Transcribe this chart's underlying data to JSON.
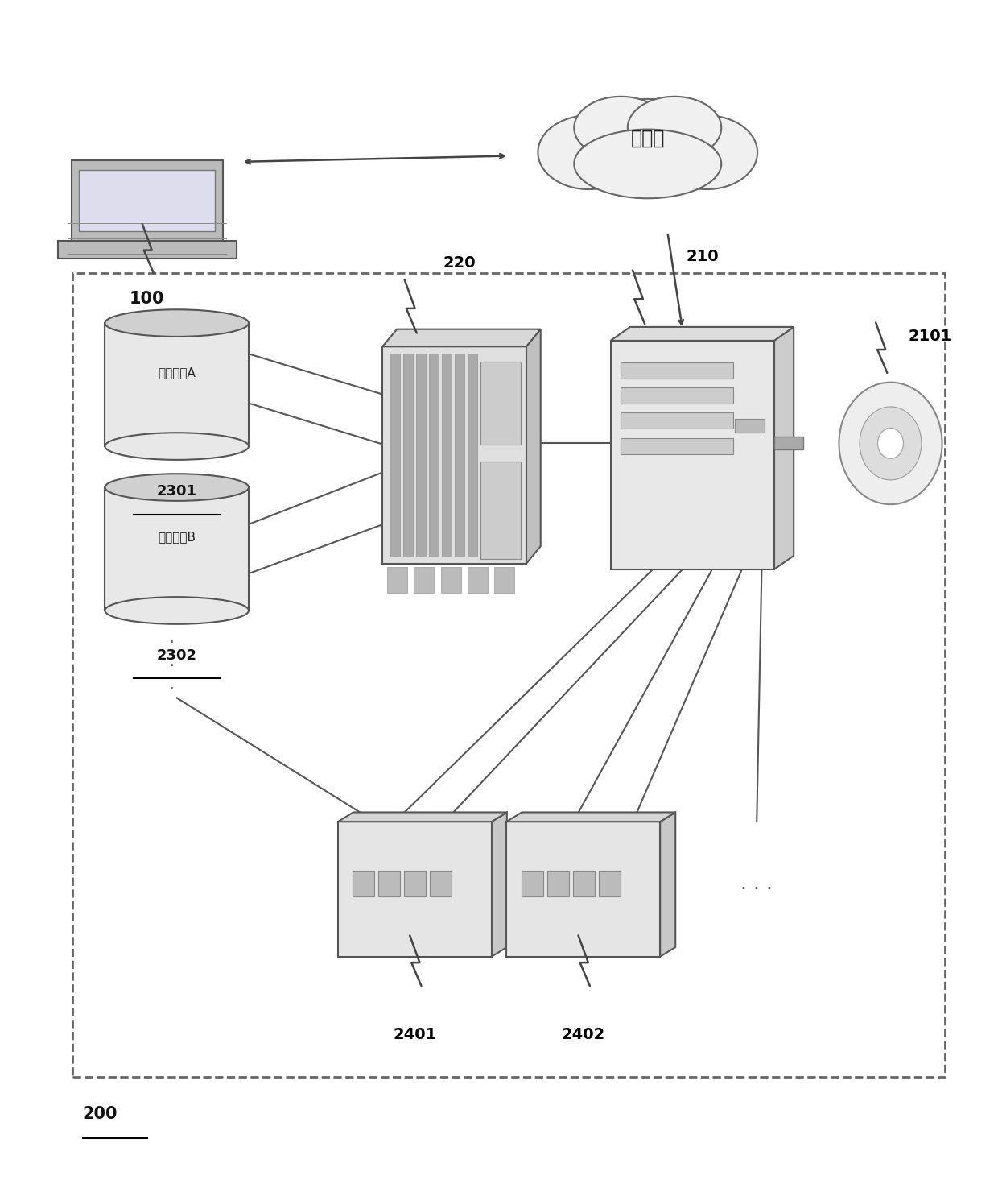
{
  "bg_color": "#ffffff",
  "label_100": "100",
  "label_200": "200",
  "label_210": "210",
  "label_220": "220",
  "label_2101": "2101",
  "label_2301": "2301",
  "label_2302": "2302",
  "label_2401": "2401",
  "label_2402": "2402",
  "label_internet": "因特网",
  "label_engine_a": "翻译引擎A",
  "label_engine_b": "翻译引擎B"
}
